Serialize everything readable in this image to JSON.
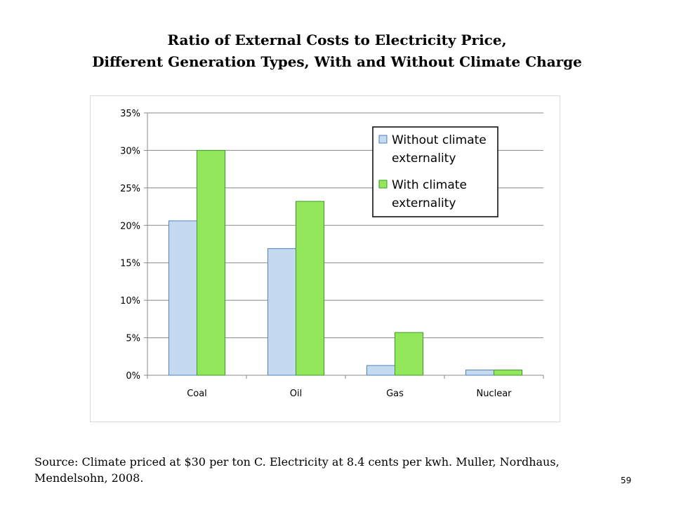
{
  "slide": {
    "title_line1": "Ratio of External Costs to Electricity Price,",
    "title_line2": "Different Generation Types, With and Without Climate Charge",
    "source": "Source: Climate priced at $30 per ton C. Electricity at 8.4 cents per kwh. Muller, Nordhaus, Mendelsohn, 2008.",
    "page_number": "59"
  },
  "chart_data": {
    "type": "bar",
    "categories": [
      "Coal",
      "Oil",
      "Gas",
      "Nuclear"
    ],
    "series": [
      {
        "name": "Without climate externality",
        "values": [
          0.206,
          0.169,
          0.013,
          0.007
        ],
        "color": "#c5d9f1",
        "stroke": "#4f81bd"
      },
      {
        "name": "With climate externality",
        "values": [
          0.3,
          0.232,
          0.057,
          0.007
        ],
        "color": "#92e85a",
        "stroke": "#3b9a2a"
      }
    ],
    "yticks": [
      "0%",
      "5%",
      "10%",
      "15%",
      "20%",
      "25%",
      "30%",
      "35%"
    ],
    "ylim": [
      0,
      0.35
    ],
    "grid": true,
    "legend_position": "top-right",
    "legend_lines": [
      [
        "Without climate",
        "externality"
      ],
      [
        "With climate",
        "externality"
      ]
    ]
  }
}
